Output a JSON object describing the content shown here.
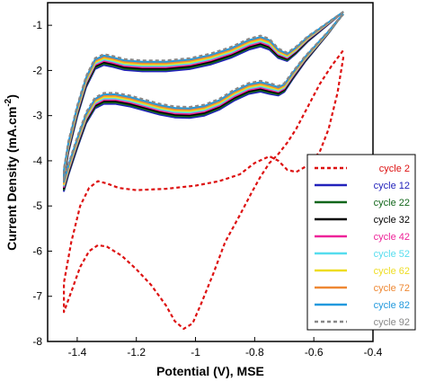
{
  "chart_data": {
    "type": "line",
    "title": "",
    "xlabel": "Potential (V), MSE",
    "ylabel": "Current Density (mA.cm",
    "ylabel_sup": "-2",
    "ylabel_close": ")",
    "xlim": [
      -1.5,
      -0.4
    ],
    "ylim": [
      -8,
      -0.5
    ],
    "xticks": [
      -1.4,
      -1.2,
      -1,
      -0.8,
      -0.6,
      -0.4
    ],
    "xtick_labels": [
      "-1.4",
      "-1.2",
      "-1",
      "-0.8",
      "-0.6",
      "-0.4"
    ],
    "yticks": [
      -1,
      -2,
      -3,
      -4,
      -5,
      -6,
      -7,
      -8
    ],
    "ytick_labels": [
      "-1",
      "-2",
      "-3",
      "-4",
      "-5",
      "-6",
      "-7",
      "-8"
    ],
    "grid": false,
    "legend_position": "right",
    "series": [
      {
        "name": "cycle 2",
        "color": "#dd1111",
        "dashed": true,
        "points": [
          [
            -0.5,
            -1.7
          ],
          [
            -0.52,
            -2.5
          ],
          [
            -0.55,
            -3.3
          ],
          [
            -0.58,
            -3.8
          ],
          [
            -0.62,
            -4.1
          ],
          [
            -0.66,
            -4.25
          ],
          [
            -0.69,
            -4.2
          ],
          [
            -0.72,
            -4.0
          ],
          [
            -0.75,
            -3.9
          ],
          [
            -0.8,
            -4.05
          ],
          [
            -0.85,
            -4.3
          ],
          [
            -0.92,
            -4.45
          ],
          [
            -1.0,
            -4.55
          ],
          [
            -1.1,
            -4.62
          ],
          [
            -1.2,
            -4.65
          ],
          [
            -1.26,
            -4.6
          ],
          [
            -1.3,
            -4.5
          ],
          [
            -1.33,
            -4.45
          ],
          [
            -1.36,
            -4.6
          ],
          [
            -1.39,
            -5.0
          ],
          [
            -1.42,
            -5.8
          ],
          [
            -1.445,
            -6.7
          ],
          [
            -1.445,
            -7.35
          ],
          [
            -1.42,
            -6.9
          ],
          [
            -1.39,
            -6.35
          ],
          [
            -1.36,
            -6.0
          ],
          [
            -1.33,
            -5.87
          ],
          [
            -1.3,
            -5.9
          ],
          [
            -1.25,
            -6.1
          ],
          [
            -1.2,
            -6.4
          ],
          [
            -1.15,
            -6.75
          ],
          [
            -1.1,
            -7.2
          ],
          [
            -1.07,
            -7.55
          ],
          [
            -1.04,
            -7.72
          ],
          [
            -1.01,
            -7.6
          ],
          [
            -0.98,
            -7.15
          ],
          [
            -0.94,
            -6.5
          ],
          [
            -0.9,
            -5.8
          ],
          [
            -0.85,
            -5.2
          ],
          [
            -0.81,
            -4.7
          ],
          [
            -0.78,
            -4.35
          ],
          [
            -0.75,
            -4.05
          ],
          [
            -0.72,
            -3.85
          ],
          [
            -0.69,
            -3.6
          ],
          [
            -0.66,
            -3.3
          ],
          [
            -0.62,
            -2.8
          ],
          [
            -0.58,
            -2.3
          ],
          [
            -0.54,
            -1.9
          ],
          [
            -0.5,
            -1.55
          ]
        ]
      },
      {
        "name": "cycle 12",
        "color": "#2222bb",
        "dashed": false,
        "offset": 0.12
      },
      {
        "name": "cycle 22",
        "color": "#11661a",
        "dashed": false,
        "offset": 0.09
      },
      {
        "name": "cycle 32",
        "color": "#000000",
        "dashed": false,
        "offset": 0.06
      },
      {
        "name": "cycle 42",
        "color": "#ee2299",
        "dashed": false,
        "offset": 0.03
      },
      {
        "name": "cycle 52",
        "color": "#55ddee",
        "dashed": false,
        "offset": 0.0
      },
      {
        "name": "cycle 62",
        "color": "#eedd22",
        "dashed": false,
        "offset": -0.03
      },
      {
        "name": "cycle 72",
        "color": "#ee8833",
        "dashed": false,
        "offset": -0.06
      },
      {
        "name": "cycle 82",
        "color": "#2299dd",
        "dashed": false,
        "offset": -0.09
      },
      {
        "name": "cycle 92",
        "color": "#888888",
        "dashed": true,
        "offset": -0.12
      }
    ],
    "base_loop": [
      [
        -0.5,
        -0.7
      ],
      [
        -0.53,
        -0.85
      ],
      [
        -0.57,
        -1.05
      ],
      [
        -0.62,
        -1.3
      ],
      [
        -0.66,
        -1.55
      ],
      [
        -0.69,
        -1.7
      ],
      [
        -0.72,
        -1.62
      ],
      [
        -0.75,
        -1.42
      ],
      [
        -0.78,
        -1.35
      ],
      [
        -0.82,
        -1.42
      ],
      [
        -0.88,
        -1.6
      ],
      [
        -0.95,
        -1.75
      ],
      [
        -1.02,
        -1.85
      ],
      [
        -1.1,
        -1.9
      ],
      [
        -1.18,
        -1.9
      ],
      [
        -1.24,
        -1.87
      ],
      [
        -1.28,
        -1.8
      ],
      [
        -1.31,
        -1.76
      ],
      [
        -1.34,
        -1.85
      ],
      [
        -1.37,
        -2.25
      ],
      [
        -1.4,
        -2.9
      ],
      [
        -1.43,
        -3.7
      ],
      [
        -1.445,
        -4.3
      ],
      [
        -1.445,
        -4.55
      ],
      [
        -1.43,
        -4.2
      ],
      [
        -1.4,
        -3.6
      ],
      [
        -1.37,
        -3.05
      ],
      [
        -1.34,
        -2.72
      ],
      [
        -1.31,
        -2.62
      ],
      [
        -1.27,
        -2.62
      ],
      [
        -1.22,
        -2.68
      ],
      [
        -1.17,
        -2.77
      ],
      [
        -1.12,
        -2.86
      ],
      [
        -1.07,
        -2.92
      ],
      [
        -1.02,
        -2.93
      ],
      [
        -0.97,
        -2.88
      ],
      [
        -0.92,
        -2.75
      ],
      [
        -0.87,
        -2.55
      ],
      [
        -0.82,
        -2.4
      ],
      [
        -0.78,
        -2.35
      ],
      [
        -0.75,
        -2.4
      ],
      [
        -0.72,
        -2.45
      ],
      [
        -0.7,
        -2.38
      ],
      [
        -0.67,
        -2.1
      ],
      [
        -0.63,
        -1.75
      ],
      [
        -0.59,
        -1.45
      ],
      [
        -0.55,
        -1.15
      ],
      [
        -0.52,
        -0.9
      ],
      [
        -0.5,
        -0.75
      ]
    ]
  }
}
